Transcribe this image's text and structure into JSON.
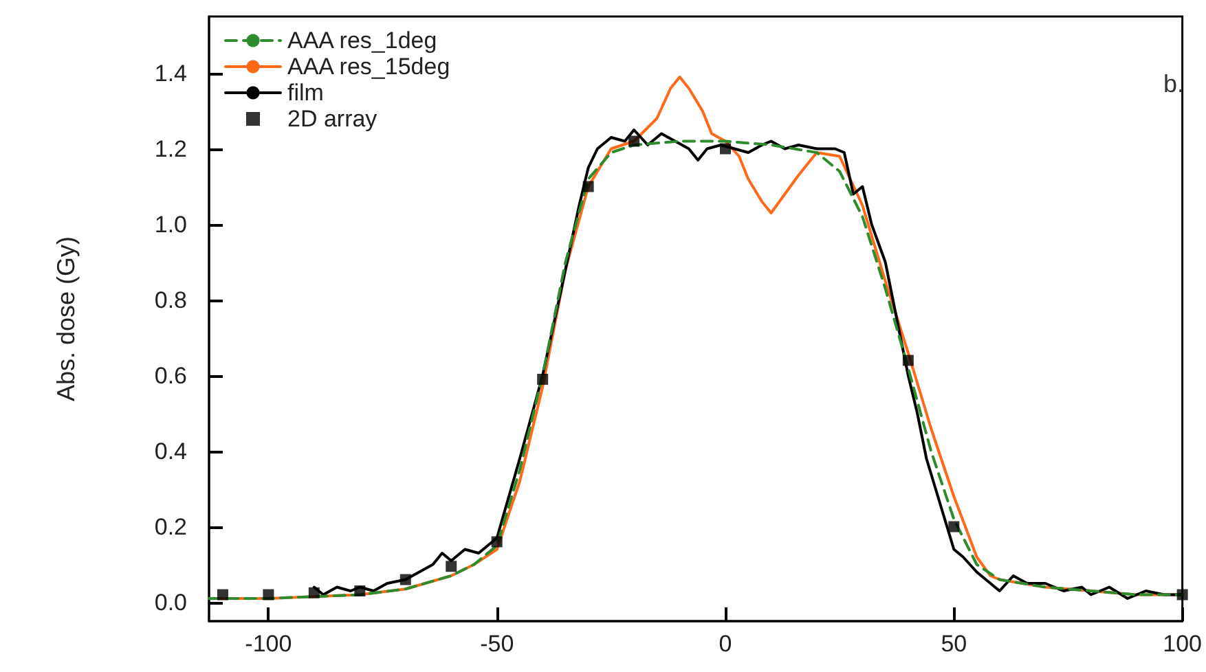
{
  "chart_data": {
    "type": "line",
    "ylabel": "Abs. dose (Gy)",
    "annotations": [
      "b."
    ],
    "xlim": [
      -113,
      100
    ],
    "xticks": [
      -100,
      -50,
      0,
      50,
      100
    ],
    "ylim": [
      -0.05,
      1.55
    ],
    "yticks": [
      {
        "value": 0,
        "label": "0.0"
      },
      {
        "value": 0.2,
        "label": "0.2"
      },
      {
        "value": 0.4,
        "label": "0.4"
      },
      {
        "value": 0.6,
        "label": "0.6"
      },
      {
        "value": 0.8,
        "label": "0.8"
      },
      {
        "value": 1.0,
        "label": "1.0"
      },
      {
        "value": 1.2,
        "label": "1.2"
      },
      {
        "value": 1.4,
        "label": "1.4"
      }
    ],
    "grid": false,
    "legend": "top left",
    "marker": "none",
    "series": [
      {
        "name": "AAA res_1deg",
        "color": "#2e8b2e",
        "line_style": "dashed",
        "x": [
          -113,
          -100,
          -80,
          -70,
          -60,
          -55,
          -50,
          -45,
          -40,
          -35,
          -30,
          -25,
          -20,
          -10,
          0,
          10,
          20,
          25,
          30,
          35,
          40,
          45,
          50,
          55,
          60,
          70,
          80,
          90,
          100
        ],
        "values": [
          0.01,
          0.01,
          0.02,
          0.035,
          0.07,
          0.1,
          0.15,
          0.35,
          0.6,
          0.9,
          1.12,
          1.19,
          1.21,
          1.22,
          1.22,
          1.21,
          1.19,
          1.14,
          1.02,
          0.83,
          0.62,
          0.4,
          0.22,
          0.1,
          0.06,
          0.04,
          0.03,
          0.02,
          0.02
        ]
      },
      {
        "name": "AAA res_15deg",
        "color": "#ff6a1a",
        "x": [
          -113,
          -100,
          -80,
          -70,
          -60,
          -55,
          -50,
          -45,
          -40,
          -35,
          -30,
          -25,
          -20,
          -15,
          -12,
          -10,
          -8,
          -5,
          -3,
          0,
          3,
          5,
          8,
          10,
          13,
          16,
          20,
          25,
          30,
          35,
          40,
          45,
          50,
          55,
          58,
          60,
          70,
          80,
          90,
          100
        ],
        "values": [
          0.01,
          0.01,
          0.02,
          0.035,
          0.07,
          0.1,
          0.14,
          0.32,
          0.57,
          0.88,
          1.1,
          1.2,
          1.22,
          1.28,
          1.36,
          1.39,
          1.36,
          1.3,
          1.24,
          1.22,
          1.18,
          1.12,
          1.06,
          1.03,
          1.08,
          1.13,
          1.19,
          1.18,
          1.05,
          0.85,
          0.66,
          0.46,
          0.28,
          0.12,
          0.07,
          0.06,
          0.04,
          0.03,
          0.02,
          0.02
        ]
      },
      {
        "name": "film",
        "color": "#000000",
        "x": [
          -90,
          -88,
          -85,
          -82,
          -80,
          -77,
          -74,
          -70,
          -67,
          -64,
          -62,
          -60,
          -57,
          -54,
          -52,
          -50,
          -45,
          -40,
          -35,
          -32,
          -30,
          -28,
          -25,
          -22,
          -20,
          -17,
          -14,
          -11,
          -8,
          -6,
          -4,
          -1,
          2,
          5,
          8,
          10,
          13,
          16,
          20,
          24,
          26,
          28,
          30,
          32,
          35,
          38,
          40,
          42,
          44,
          46,
          48,
          50,
          52,
          55,
          58,
          60,
          63,
          66,
          70,
          74,
          78,
          80,
          84,
          88,
          92,
          96,
          100
        ],
        "values": [
          0.04,
          0.02,
          0.04,
          0.03,
          0.04,
          0.03,
          0.05,
          0.06,
          0.08,
          0.1,
          0.13,
          0.11,
          0.14,
          0.13,
          0.15,
          0.17,
          0.38,
          0.6,
          0.88,
          1.05,
          1.15,
          1.2,
          1.23,
          1.22,
          1.25,
          1.21,
          1.24,
          1.22,
          1.2,
          1.17,
          1.2,
          1.21,
          1.2,
          1.19,
          1.21,
          1.22,
          1.2,
          1.21,
          1.2,
          1.2,
          1.19,
          1.08,
          1.1,
          1.0,
          0.9,
          0.72,
          0.6,
          0.5,
          0.38,
          0.3,
          0.22,
          0.14,
          0.12,
          0.08,
          0.05,
          0.03,
          0.07,
          0.05,
          0.05,
          0.03,
          0.04,
          0.02,
          0.04,
          0.01,
          0.03,
          0.02,
          0.02
        ]
      },
      {
        "name": "2D array",
        "type": "scatter",
        "marker": "square",
        "color": "#000000",
        "x": [
          -110,
          -100,
          -90,
          -80,
          -70,
          -60,
          -50,
          -40,
          -30,
          -20,
          0,
          40,
          50,
          100
        ],
        "values": [
          0.02,
          0.02,
          0.025,
          0.03,
          0.06,
          0.095,
          0.16,
          0.59,
          1.1,
          1.22,
          1.2,
          0.64,
          0.2,
          0.02
        ]
      }
    ]
  }
}
